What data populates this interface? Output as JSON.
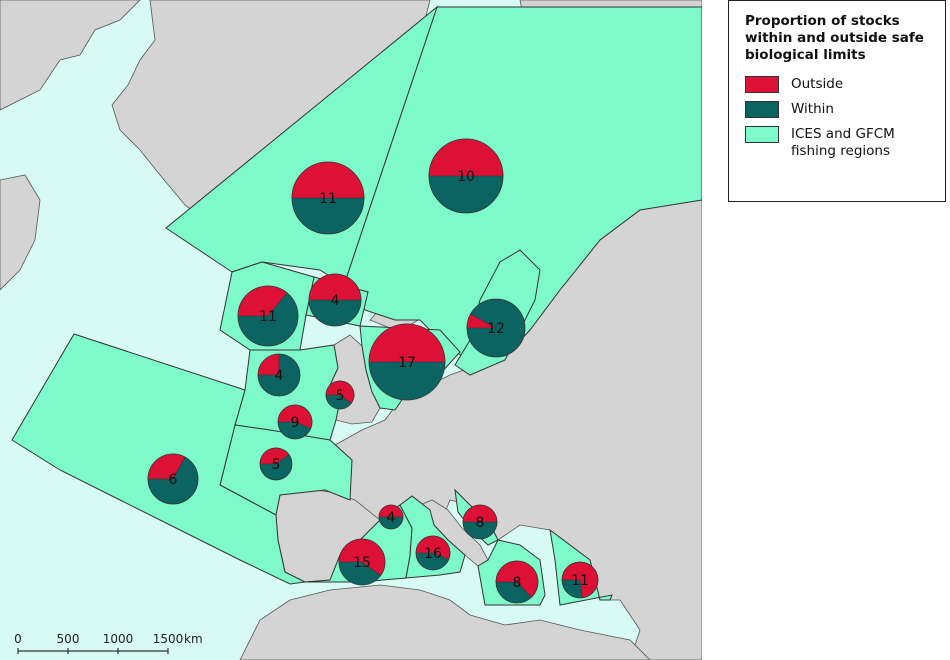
{
  "legend": {
    "title": "Proportion of stocks within and outside safe biological limits",
    "items": [
      {
        "key": "outside",
        "label": "Outside",
        "color": "#dc1135"
      },
      {
        "key": "within",
        "label": "Within",
        "color": "#0c6462"
      },
      {
        "key": "regions",
        "label": "ICES and GFCM fishing regions",
        "color": "#7ef9c9"
      }
    ]
  },
  "scale_bar": {
    "ticks": [
      "0",
      "500",
      "1000",
      "1500"
    ],
    "unit": "km"
  },
  "colors": {
    "sea": "#d7fbf4",
    "land": "#d4d4d4",
    "border": "#555555",
    "region_fill": "#7ef9c9"
  },
  "regions": [
    {
      "id": "northeast-arctic"
    },
    {
      "id": "iceland-greenland"
    },
    {
      "id": "faroes"
    },
    {
      "id": "west-of-scotland"
    },
    {
      "id": "north-sea"
    },
    {
      "id": "baltic"
    },
    {
      "id": "celtic-seas"
    },
    {
      "id": "bay-of-biscay"
    },
    {
      "id": "iberian-atlantic-azores"
    },
    {
      "id": "western-mediterranean"
    },
    {
      "id": "ligurian-tyrrhenian"
    },
    {
      "id": "adriatic"
    },
    {
      "id": "ionian"
    },
    {
      "id": "aegean-levantine"
    }
  ],
  "stocks": [
    {
      "label": "11",
      "outside_fraction": 0.5
    },
    {
      "label": "10",
      "outside_fraction": 0.5
    },
    {
      "label": "4",
      "outside_fraction": 0.5
    },
    {
      "label": "11",
      "outside_fraction": 0.36
    },
    {
      "label": "12",
      "outside_fraction": 0.08
    },
    {
      "label": "17",
      "outside_fraction": 0.5
    },
    {
      "label": "4",
      "outside_fraction": 0.25
    },
    {
      "label": "5",
      "outside_fraction": 0.6
    },
    {
      "label": "9",
      "outside_fraction": 0.56
    },
    {
      "label": "5",
      "outside_fraction": 0.4
    },
    {
      "label": "6",
      "outside_fraction": 0.33
    },
    {
      "label": "4",
      "outside_fraction": 0.5
    },
    {
      "label": "8",
      "outside_fraction": 0.5
    },
    {
      "label": "16",
      "outside_fraction": 0.56
    },
    {
      "label": "15",
      "outside_fraction": 0.6
    },
    {
      "label": "8",
      "outside_fraction": 0.63
    },
    {
      "label": "11",
      "outside_fraction": 0.73
    }
  ]
}
